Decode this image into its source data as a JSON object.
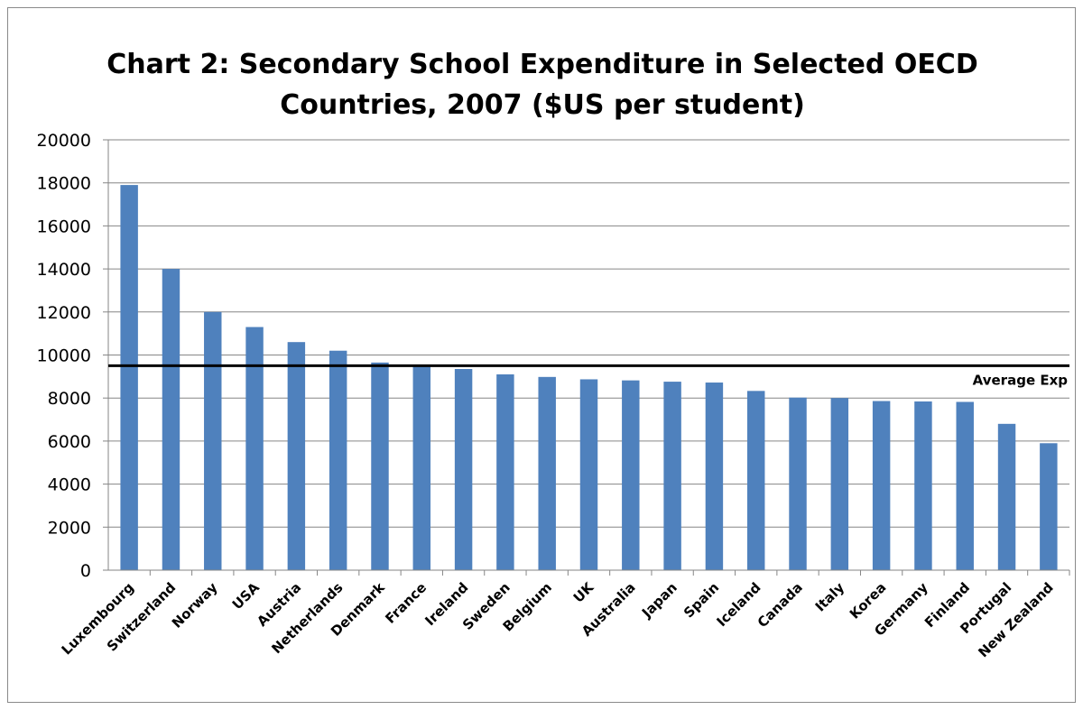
{
  "chart_data": {
    "type": "bar",
    "title_lines": [
      "Chart 2: Secondary School Expenditure in Selected OECD",
      "Countries, 2007 ($US per student)"
    ],
    "categories": [
      "Luxembourg",
      "Switzerland",
      "Norway",
      "USA",
      "Austria",
      "Netherlands",
      "Denmark",
      "France",
      "Ireland",
      "Sweden",
      "Belgium",
      "UK",
      "Australia",
      "Japan",
      "Spain",
      "Iceland",
      "Canada",
      "Italy",
      "Korea",
      "Germany",
      "Finland",
      "Portugal",
      "New Zealand"
    ],
    "values": [
      17900,
      14000,
      12000,
      11300,
      10600,
      10200,
      9650,
      9500,
      9350,
      9100,
      8980,
      8870,
      8820,
      8760,
      8720,
      8330,
      8020,
      8000,
      7860,
      7840,
      7820,
      6800,
      5900
    ],
    "ylim": [
      0,
      20000
    ],
    "yticks": [
      "0",
      "2000",
      "4000",
      "6000",
      "8000",
      "10000",
      "12000",
      "14000",
      "16000",
      "18000",
      "20000"
    ],
    "grid": true,
    "bar_color": "#4f81bd",
    "reference_line": {
      "label": "Average Exp",
      "value": 9500,
      "color": "#000000"
    }
  }
}
